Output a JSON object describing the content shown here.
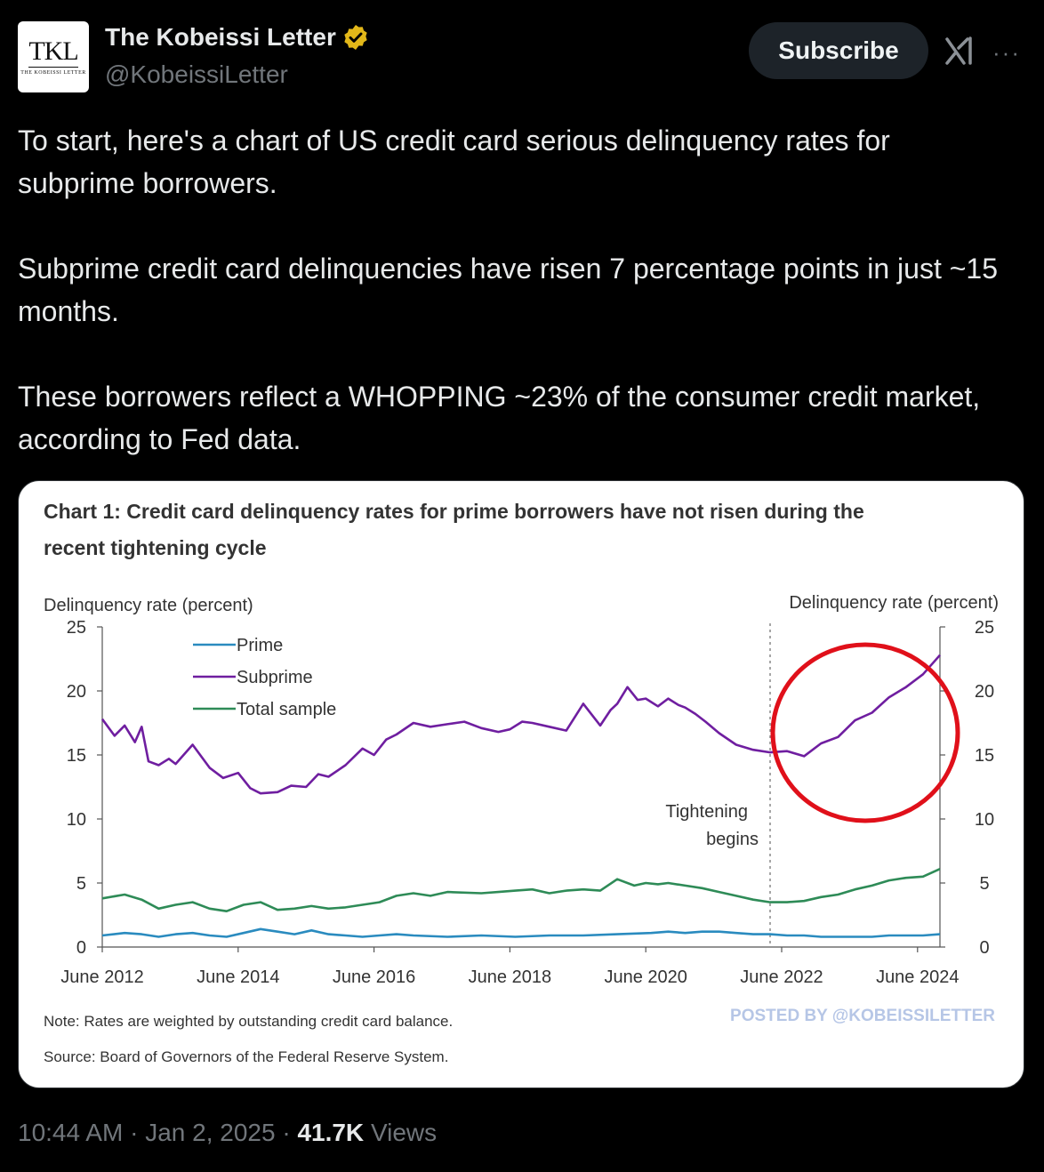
{
  "author": {
    "avatar_text": "TKL",
    "avatar_subtext": "THE KOBEISSI LETTER",
    "display_name": "The Kobeissi Letter",
    "handle": "@KobeissiLetter",
    "verified_icon": "verified-gold-badge"
  },
  "header": {
    "subscribe_label": "Subscribe",
    "grok_icon": "grok-icon",
    "more_icon": "more-icon",
    "more_label": "···"
  },
  "tweet": {
    "paragraphs": [
      "To start, here's a chart of US credit card serious delinquency rates for subprime borrowers.",
      "Subprime credit card delinquencies have risen 7 percentage points in just ~15 months.",
      "These borrowers reflect a WHOPPING ~23% of the consumer credit market, according to Fed data."
    ]
  },
  "chart": {
    "title_line1": "Chart 1: Credit card delinquency rates for prime borrowers have not risen during the",
    "title_line2": "recent tightening cycle",
    "left_axis_label": "Delinquency rate (percent)",
    "right_axis_label": "Delinquency rate (percent)",
    "annotation_line1": "Tightening",
    "annotation_line2": "begins",
    "note": "Note: Rates are weighted by outstanding credit card balance.",
    "source": "Source: Board of Governors of the Federal Reserve System.",
    "watermark": "POSTED BY @KOBEISSILETTER",
    "colors": {
      "prime": "#2a8bbf",
      "subprime": "#6f1ea0",
      "total": "#2e8b57",
      "highlight_circle": "#e0101a"
    }
  },
  "chart_data": {
    "type": "line",
    "title": "Chart 1: Credit card delinquency rates for prime borrowers have not risen during the recent tightening cycle",
    "ylabel": "Delinquency rate (percent)",
    "ylim": [
      0,
      25
    ],
    "yticks": [
      0,
      5,
      10,
      15,
      20,
      25
    ],
    "xlim": [
      2012.42,
      2024.75
    ],
    "xticks": [
      {
        "value": 2012.42,
        "label": "June 2012"
      },
      {
        "value": 2014.42,
        "label": "June 2014"
      },
      {
        "value": 2016.42,
        "label": "June 2016"
      },
      {
        "value": 2018.42,
        "label": "June 2018"
      },
      {
        "value": 2020.42,
        "label": "June 2020"
      },
      {
        "value": 2022.42,
        "label": "June 2022"
      },
      {
        "value": 2024.42,
        "label": "June 2024"
      }
    ],
    "legend_position": "top-left",
    "vline": 2022.25,
    "series": [
      {
        "name": "Prime",
        "x": [
          2012.42,
          2012.75,
          2013.0,
          2013.25,
          2013.5,
          2013.75,
          2014.0,
          2014.25,
          2014.5,
          2014.75,
          2015.0,
          2015.25,
          2015.5,
          2015.75,
          2016.0,
          2016.25,
          2016.5,
          2016.75,
          2017.0,
          2017.5,
          2018.0,
          2018.5,
          2019.0,
          2019.5,
          2020.0,
          2020.5,
          2020.75,
          2021.0,
          2021.25,
          2021.5,
          2021.75,
          2022.0,
          2022.25,
          2022.5,
          2022.75,
          2023.0,
          2023.25,
          2023.5,
          2023.75,
          2024.0,
          2024.25,
          2024.5,
          2024.75
        ],
        "values": [
          0.9,
          1.1,
          1.0,
          0.8,
          1.0,
          1.1,
          0.9,
          0.8,
          1.1,
          1.4,
          1.2,
          1.0,
          1.3,
          1.0,
          0.9,
          0.8,
          0.9,
          1.0,
          0.9,
          0.8,
          0.9,
          0.8,
          0.9,
          0.9,
          1.0,
          1.1,
          1.2,
          1.1,
          1.2,
          1.2,
          1.1,
          1.0,
          1.0,
          0.9,
          0.9,
          0.8,
          0.8,
          0.8,
          0.8,
          0.9,
          0.9,
          0.9,
          1.0
        ]
      },
      {
        "name": "Subprime",
        "x": [
          2012.42,
          2012.6,
          2012.75,
          2012.9,
          2013.0,
          2013.1,
          2013.25,
          2013.4,
          2013.5,
          2013.75,
          2014.0,
          2014.2,
          2014.42,
          2014.6,
          2014.75,
          2015.0,
          2015.2,
          2015.42,
          2015.6,
          2015.75,
          2016.0,
          2016.25,
          2016.42,
          2016.6,
          2016.75,
          2017.0,
          2017.25,
          2017.5,
          2017.75,
          2018.0,
          2018.25,
          2018.42,
          2018.6,
          2018.75,
          2019.0,
          2019.25,
          2019.5,
          2019.75,
          2019.9,
          2020.0,
          2020.15,
          2020.3,
          2020.42,
          2020.6,
          2020.75,
          2020.9,
          2021.0,
          2021.15,
          2021.3,
          2021.5,
          2021.75,
          2022.0,
          2022.25,
          2022.5,
          2022.75,
          2023.0,
          2023.25,
          2023.5,
          2023.75,
          2024.0,
          2024.25,
          2024.5,
          2024.75
        ],
        "values": [
          17.8,
          16.5,
          17.3,
          16.0,
          17.2,
          14.5,
          14.2,
          14.7,
          14.3,
          15.8,
          14.0,
          13.2,
          13.6,
          12.4,
          12.0,
          12.1,
          12.6,
          12.5,
          13.5,
          13.3,
          14.2,
          15.5,
          15.0,
          16.2,
          16.6,
          17.5,
          17.2,
          17.4,
          17.6,
          17.1,
          16.8,
          17.0,
          17.6,
          17.5,
          17.2,
          16.9,
          19.0,
          17.3,
          18.5,
          19.0,
          20.3,
          19.3,
          19.4,
          18.8,
          19.4,
          18.9,
          18.7,
          18.2,
          17.6,
          16.7,
          15.8,
          15.4,
          15.2,
          15.3,
          14.9,
          15.9,
          16.4,
          17.7,
          18.3,
          19.5,
          20.3,
          21.3,
          22.8
        ]
      },
      {
        "name": "Total sample",
        "x": [
          2012.42,
          2012.75,
          2013.0,
          2013.25,
          2013.5,
          2013.75,
          2014.0,
          2014.25,
          2014.5,
          2014.75,
          2015.0,
          2015.25,
          2015.5,
          2015.75,
          2016.0,
          2016.25,
          2016.5,
          2016.75,
          2017.0,
          2017.25,
          2017.5,
          2018.0,
          2018.25,
          2018.5,
          2018.75,
          2019.0,
          2019.25,
          2019.5,
          2019.75,
          2020.0,
          2020.25,
          2020.42,
          2020.6,
          2020.75,
          2021.0,
          2021.25,
          2021.5,
          2021.75,
          2022.0,
          2022.25,
          2022.5,
          2022.75,
          2023.0,
          2023.25,
          2023.5,
          2023.75,
          2024.0,
          2024.25,
          2024.5,
          2024.75
        ],
        "values": [
          3.8,
          4.1,
          3.7,
          3.0,
          3.3,
          3.5,
          3.0,
          2.8,
          3.3,
          3.5,
          2.9,
          3.0,
          3.2,
          3.0,
          3.1,
          3.3,
          3.5,
          4.0,
          4.2,
          4.0,
          4.3,
          4.2,
          4.3,
          4.4,
          4.5,
          4.2,
          4.4,
          4.5,
          4.4,
          5.3,
          4.8,
          5.0,
          4.9,
          5.0,
          4.8,
          4.6,
          4.3,
          4.0,
          3.7,
          3.5,
          3.5,
          3.6,
          3.9,
          4.1,
          4.5,
          4.8,
          5.2,
          5.4,
          5.5,
          6.1
        ]
      }
    ]
  },
  "footer": {
    "time": "10:44 AM",
    "date": "Jan 2, 2025",
    "separator": "·",
    "views_count": "41.7K",
    "views_label": "Views"
  }
}
